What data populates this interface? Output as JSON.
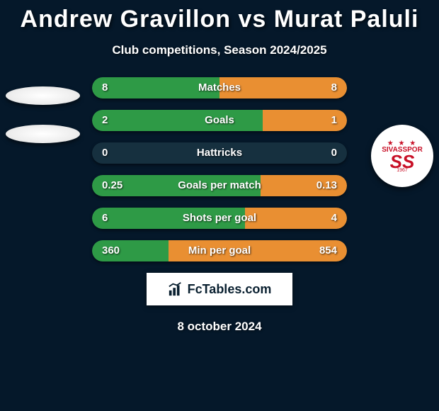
{
  "title": "Andrew Gravillon vs Murat Paluli",
  "subtitle": "Club competitions, Season 2024/2025",
  "date": "8 october 2024",
  "brand": "FcTables.com",
  "colors": {
    "left": "#2e9a46",
    "right": "#e98f32",
    "track": "#16303f",
    "bg": "#05182a"
  },
  "club_right": {
    "name": "SIVASSPOR",
    "year": "1967"
  },
  "stats": [
    {
      "label": "Matches",
      "left_val": "8",
      "right_val": "8",
      "left_pct": 50,
      "right_pct": 50
    },
    {
      "label": "Goals",
      "left_val": "2",
      "right_val": "1",
      "left_pct": 67,
      "right_pct": 33
    },
    {
      "label": "Hattricks",
      "left_val": "0",
      "right_val": "0",
      "left_pct": 0,
      "right_pct": 0
    },
    {
      "label": "Goals per match",
      "left_val": "0.25",
      "right_val": "0.13",
      "left_pct": 66,
      "right_pct": 34
    },
    {
      "label": "Shots per goal",
      "left_val": "6",
      "right_val": "4",
      "left_pct": 60,
      "right_pct": 40
    },
    {
      "label": "Min per goal",
      "left_val": "360",
      "right_val": "854",
      "left_pct": 30,
      "right_pct": 70
    }
  ]
}
